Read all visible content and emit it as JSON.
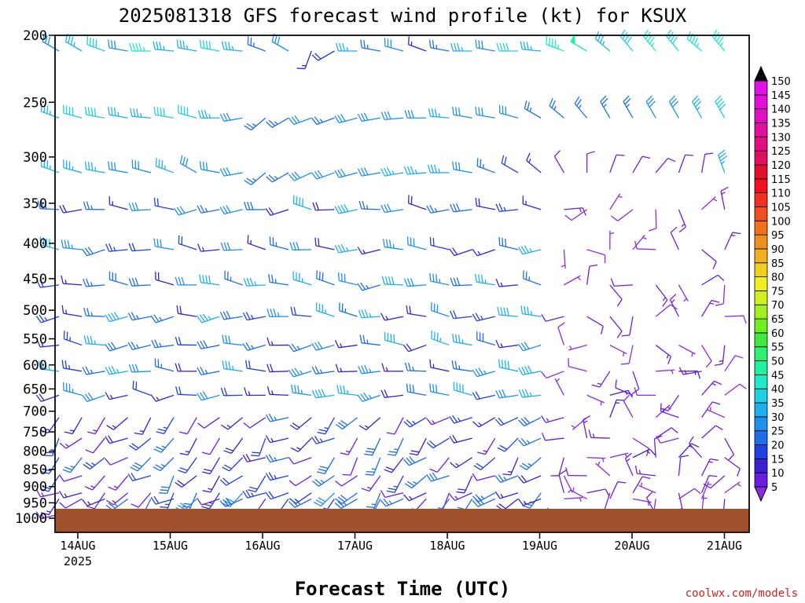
{
  "chart_data": {
    "type": "wind-barb-profile",
    "title": "2025081318 GFS forecast wind profile (kt) for KSUX",
    "xlabel": "Forecast Time (UTC)",
    "x_ticks": [
      "14AUG",
      "15AUG",
      "16AUG",
      "17AUG",
      "18AUG",
      "19AUG",
      "20AUG",
      "21AUG"
    ],
    "x_year": "2025",
    "y_ticks": [
      200,
      250,
      300,
      350,
      400,
      450,
      500,
      550,
      600,
      650,
      700,
      750,
      800,
      850,
      900,
      950,
      1000
    ],
    "ylim": [
      1000,
      200
    ],
    "y_scale": "log-pressure",
    "colorbar": {
      "unit": "kt",
      "levels": [
        5,
        10,
        15,
        20,
        25,
        30,
        35,
        40,
        45,
        50,
        55,
        60,
        65,
        70,
        75,
        80,
        85,
        90,
        95,
        100,
        105,
        110,
        115,
        120,
        125,
        130,
        135,
        140,
        145,
        150
      ],
      "colors": [
        "#8a2be2",
        "#6a1fe0",
        "#3a20d0",
        "#2040e0",
        "#1e6ee8",
        "#1e90f0",
        "#20b0f0",
        "#20d0e0",
        "#20e8c8",
        "#20f0a0",
        "#30f070",
        "#40e840",
        "#70f020",
        "#a0f020",
        "#d0f020",
        "#f0f020",
        "#f0d020",
        "#f0b020",
        "#f09020",
        "#f07020",
        "#f05020",
        "#f03020",
        "#f01020",
        "#e0102a",
        "#e01060",
        "#e01080",
        "#e010a0",
        "#e010c0",
        "#e010d8",
        "#e010e8"
      ]
    },
    "series": [
      {
        "level": 200,
        "speeds_kt": [
          30,
          35,
          40,
          30,
          45,
          35,
          35,
          40,
          35,
          25,
          30,
          15,
          20,
          35,
          25,
          30,
          15,
          25,
          35,
          30,
          40,
          35,
          45,
          50,
          35,
          40,
          45,
          40,
          45,
          45
        ],
        "dirs_deg": [
          300,
          300,
          290,
          280,
          270,
          275,
          280,
          280,
          275,
          290,
          300,
          200,
          240,
          270,
          280,
          285,
          290,
          280,
          270,
          280,
          270,
          275,
          290,
          300,
          310,
          320,
          320,
          320,
          310,
          320
        ]
      },
      {
        "level": 250,
        "speeds_kt": [
          35,
          40,
          40,
          35,
          35,
          40,
          40,
          35,
          30,
          25,
          25,
          30,
          25,
          30,
          30,
          30,
          30,
          35,
          30,
          30,
          30,
          25,
          25,
          25,
          25,
          25,
          30,
          30,
          35,
          40
        ],
        "dirs_deg": [
          290,
          285,
          280,
          280,
          275,
          280,
          285,
          270,
          260,
          230,
          240,
          250,
          250,
          255,
          260,
          265,
          270,
          275,
          280,
          280,
          285,
          300,
          310,
          320,
          330,
          330,
          330,
          330,
          330,
          330
        ]
      },
      {
        "level": 300,
        "speeds_kt": [
          35,
          35,
          35,
          30,
          30,
          35,
          30,
          30,
          30,
          25,
          25,
          30,
          30,
          30,
          30,
          35,
          35,
          35,
          30,
          25,
          20,
          15,
          10,
          10,
          10,
          10,
          10,
          10,
          10,
          35
        ],
        "dirs_deg": [
          290,
          285,
          280,
          280,
          285,
          290,
          300,
          280,
          260,
          230,
          240,
          245,
          250,
          255,
          260,
          260,
          265,
          270,
          280,
          290,
          300,
          310,
          330,
          0,
          20,
          30,
          40,
          20,
          10,
          340
        ]
      }
    ]
  },
  "credit": "coolwx.com/models"
}
